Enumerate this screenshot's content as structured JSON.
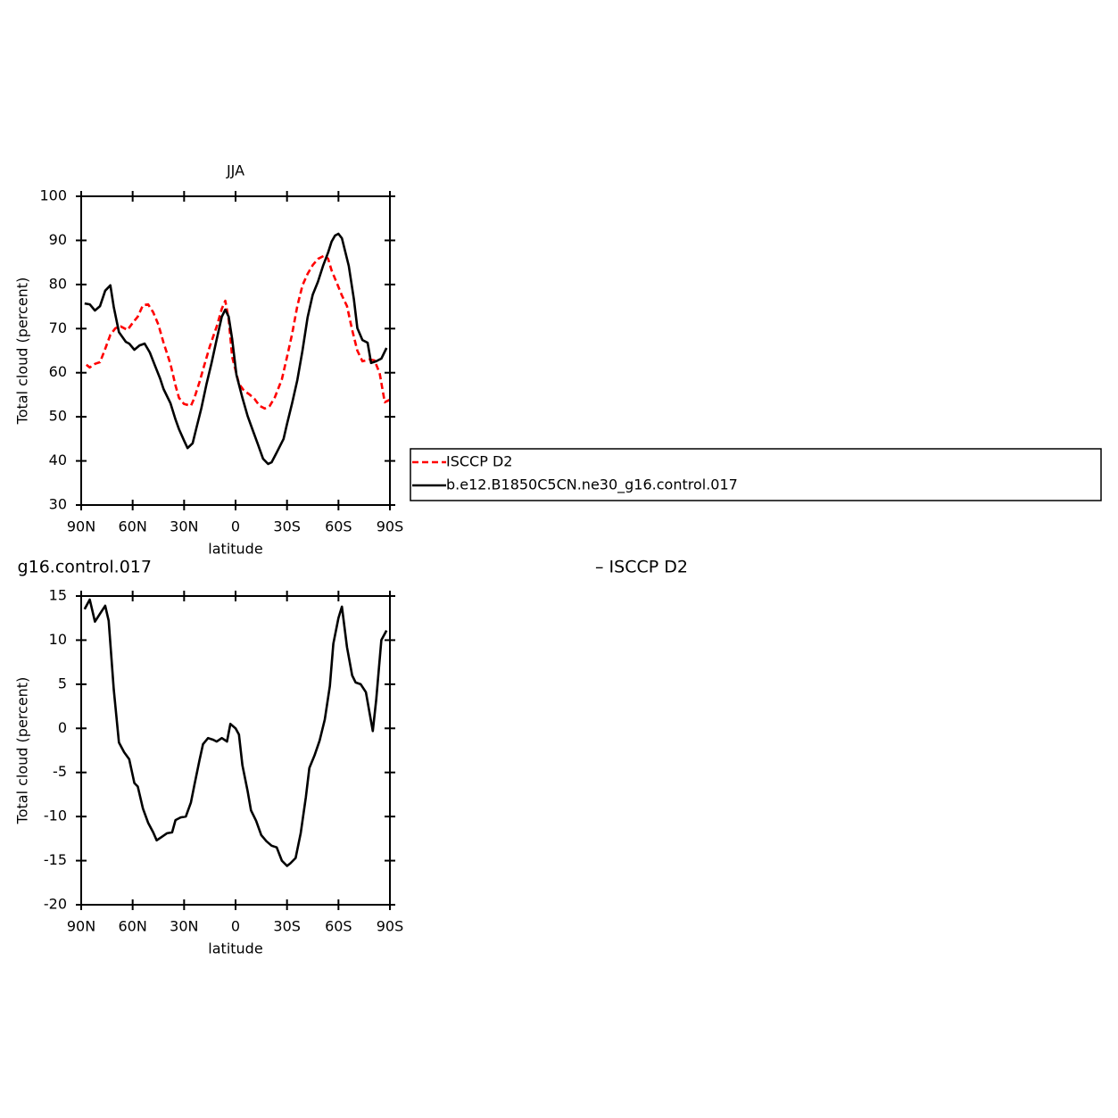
{
  "chart_data": [
    {
      "type": "line",
      "title": "JJA",
      "xlabel": "latitude",
      "ylabel": "Total cloud (percent)",
      "xlim": [
        90,
        -90
      ],
      "ylim": [
        30,
        100
      ],
      "xticks": [
        {
          "value": 90,
          "label": "90N"
        },
        {
          "value": 60,
          "label": "60N"
        },
        {
          "value": 30,
          "label": "30N"
        },
        0,
        {
          "value": -30,
          "label": "30S"
        },
        {
          "value": -60,
          "label": "60S"
        },
        {
          "value": -90,
          "label": "90S"
        }
      ],
      "yticks": [
        30,
        40,
        50,
        60,
        70,
        80,
        90,
        100
      ],
      "legend": "right",
      "series": [
        {
          "name": "ISCCP D2",
          "color": "#ff0000",
          "dash": true,
          "x": [
            87,
            85,
            82,
            79,
            76,
            73,
            70,
            67,
            63,
            60,
            57,
            54,
            51,
            48,
            45,
            42,
            38,
            35,
            33,
            30,
            26,
            24,
            21,
            18,
            15,
            11,
            8,
            6,
            4,
            2,
            -2,
            -5,
            -8,
            -11,
            -14,
            -17,
            -20,
            -23,
            -27,
            -30,
            -33,
            -36,
            -39,
            -42,
            -45,
            -48,
            -52,
            -54,
            -56,
            -59,
            -62,
            -65,
            -68,
            -71,
            -74,
            -78,
            -81,
            -84,
            -87,
            -90
          ],
          "values": [
            61.8,
            61.2,
            62.0,
            62.4,
            65.4,
            68.6,
            70.1,
            70.5,
            69.7,
            71.3,
            72.7,
            75.3,
            75.5,
            73.7,
            70.9,
            66.8,
            62.0,
            57.1,
            54.3,
            52.9,
            52.5,
            54.3,
            57.9,
            62.0,
            66.0,
            70.5,
            74.5,
            76.3,
            72.1,
            63.6,
            57.5,
            55.9,
            55.1,
            54.1,
            52.5,
            51.9,
            52.5,
            54.5,
            58.5,
            63.6,
            68.8,
            75.1,
            79.8,
            82.4,
            84.4,
            85.8,
            86.6,
            85.8,
            83.2,
            80.4,
            77.5,
            75.1,
            69.7,
            65.0,
            62.6,
            63.0,
            62.8,
            59.9,
            53.3,
            53.9
          ]
        },
        {
          "name": "b.e12.B1850C5CN.ne30_g16.control.017",
          "color": "#000000",
          "dash": false,
          "x": [
            88,
            85,
            82,
            79,
            76,
            73,
            71,
            68,
            64,
            62,
            59,
            56,
            53,
            50,
            47,
            44,
            42,
            38,
            35,
            33,
            30,
            28,
            25,
            23,
            20,
            17,
            14,
            11,
            8,
            6,
            4,
            2,
            -0.5,
            -4,
            -7,
            -10,
            -13,
            -16,
            -19,
            -21,
            -24,
            -28,
            -30,
            -33,
            -36,
            -39,
            -42,
            -45,
            -48,
            -51,
            -54,
            -56,
            -58,
            -60,
            -62,
            -66,
            -69,
            -71,
            -74,
            -77,
            -79,
            -82,
            -85,
            -88
          ],
          "values": [
            75.7,
            75.5,
            74.1,
            75.1,
            78.6,
            79.8,
            74.9,
            69.2,
            67.0,
            66.6,
            65.2,
            66.2,
            66.6,
            64.6,
            61.6,
            58.7,
            56.3,
            53.1,
            49.4,
            47.2,
            44.6,
            42.9,
            44.0,
            47.2,
            51.9,
            57.3,
            62.2,
            67.6,
            72.7,
            74.3,
            72.7,
            67.6,
            59.5,
            54.3,
            50.2,
            47.0,
            43.8,
            40.5,
            39.3,
            39.7,
            41.9,
            45.0,
            48.4,
            53.1,
            58.3,
            65.0,
            72.5,
            77.7,
            80.6,
            84.2,
            87.3,
            89.7,
            91.1,
            91.5,
            90.5,
            84.2,
            76.7,
            70.1,
            67.4,
            66.8,
            62.2,
            62.6,
            63.2,
            65.6
          ]
        }
      ]
    },
    {
      "type": "line",
      "title_parts": [
        "g16.control.017",
        "– ISCCP D2"
      ],
      "xlabel": "latitude",
      "ylabel": "Total cloud (percent)",
      "xlim": [
        90,
        -90
      ],
      "ylim": [
        -20,
        15
      ],
      "xticks": [
        {
          "value": 90,
          "label": "90N"
        },
        {
          "value": 60,
          "label": "60N"
        },
        {
          "value": 30,
          "label": "30N"
        },
        0,
        {
          "value": -30,
          "label": "30S"
        },
        {
          "value": -60,
          "label": "60S"
        },
        {
          "value": -90,
          "label": "90S"
        }
      ],
      "yticks": [
        -20,
        -15,
        -10,
        -5,
        0,
        5,
        10,
        15
      ],
      "series": [
        {
          "color": "#000000",
          "dash": false,
          "x": [
            88,
            85,
            82,
            79,
            76,
            74,
            71,
            68,
            65,
            62,
            59,
            57,
            54,
            51,
            48,
            46,
            43,
            40,
            37,
            35,
            32,
            29,
            26,
            24,
            21,
            19,
            16,
            13,
            11,
            8,
            5,
            3,
            0,
            -2,
            -4,
            -7,
            -9,
            -12,
            -15,
            -18,
            -21,
            -24,
            -27,
            -30,
            -32,
            -35,
            -38,
            -41,
            -43,
            -46,
            -49,
            -52,
            -55,
            -57,
            -60,
            -62,
            -65,
            -68,
            -70,
            -73,
            -76,
            -80,
            -82,
            -85,
            -88
          ],
          "values": [
            13.5,
            14.6,
            12.1,
            13.0,
            13.9,
            12.2,
            4.4,
            -1.6,
            -2.7,
            -3.5,
            -6.2,
            -6.6,
            -9.1,
            -10.7,
            -11.8,
            -12.7,
            -12.3,
            -11.9,
            -11.8,
            -10.4,
            -10.1,
            -10.0,
            -8.4,
            -6.4,
            -3.6,
            -1.8,
            -1.1,
            -1.3,
            -1.5,
            -1.1,
            -1.5,
            0.5,
            0.0,
            -0.7,
            -4.2,
            -7.1,
            -9.3,
            -10.5,
            -12.1,
            -12.8,
            -13.3,
            -13.5,
            -15.0,
            -15.6,
            -15.3,
            -14.7,
            -11.9,
            -7.8,
            -4.5,
            -3.1,
            -1.4,
            1.0,
            4.8,
            9.6,
            12.5,
            13.8,
            9.2,
            6.0,
            5.2,
            5.0,
            4.1,
            -0.3,
            3.2,
            10.0,
            11.1
          ]
        }
      ]
    }
  ]
}
